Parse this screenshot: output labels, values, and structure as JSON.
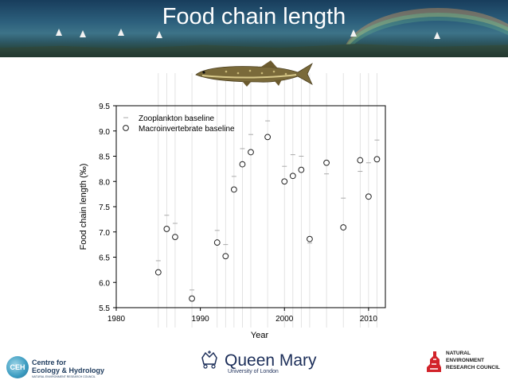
{
  "slide": {
    "title": "Food chain length"
  },
  "chart_data": {
    "type": "scatter",
    "title": "",
    "xlabel": "Year",
    "ylabel": "Food chain length (‰)",
    "xlim": [
      1980,
      2012
    ],
    "ylim": [
      5.5,
      9.5
    ],
    "xticks": [
      1980,
      1990,
      2000,
      2010
    ],
    "yticks": [
      5.5,
      6.0,
      6.5,
      7.0,
      7.5,
      8.0,
      8.5,
      9.0,
      9.5
    ],
    "ytick_labels": [
      "5.5",
      "6.0",
      "6.5",
      "7.0",
      "7.5",
      "8.0",
      "8.5",
      "9.0",
      "9.5"
    ],
    "grid": false,
    "legend_position": "top-left",
    "series": [
      {
        "name": "Zooplankton baseline",
        "marker": "dash",
        "x": [
          1985,
          1986,
          1987,
          1989,
          1992,
          1993,
          1994,
          1995,
          1996,
          1998,
          2000,
          2001,
          2002,
          2003,
          2005,
          2007,
          2009,
          2010,
          2011
        ],
        "y": [
          6.43,
          7.33,
          7.17,
          5.85,
          7.03,
          6.75,
          8.1,
          8.65,
          8.93,
          9.2,
          8.3,
          8.53,
          8.5,
          6.78,
          8.15,
          7.67,
          8.2,
          8.37,
          8.82
        ]
      },
      {
        "name": "Macroinvertebrate baseline",
        "marker": "circle",
        "x": [
          1985,
          1986,
          1987,
          1989,
          1992,
          1993,
          1994,
          1995,
          1996,
          1998,
          2000,
          2001,
          2002,
          2003,
          2005,
          2007,
          2009,
          2010,
          2011
        ],
        "y": [
          6.2,
          7.06,
          6.9,
          5.68,
          6.79,
          6.52,
          7.84,
          8.34,
          8.58,
          8.88,
          8.0,
          8.11,
          8.23,
          6.86,
          8.37,
          7.09,
          8.42,
          7.7,
          8.44
        ]
      }
    ]
  },
  "logos": {
    "ceh": {
      "letters": "CEH",
      "line1": "Centre for",
      "line2": "Ecology & Hydrology",
      "sub": "NATURAL ENVIRONMENT RESEARCH COUNCIL"
    },
    "qmul": {
      "name": "Queen Mary",
      "sub": "University of London"
    },
    "nerc": {
      "line1": "NATURAL",
      "line2": "ENVIRONMENT",
      "line3": "RESEARCH COUNCIL"
    }
  },
  "colors": {
    "marker": "#222222",
    "dash_marker": "#aaaaaa",
    "nerc_red": "#d2232a",
    "banner": "#2c5f7c"
  }
}
